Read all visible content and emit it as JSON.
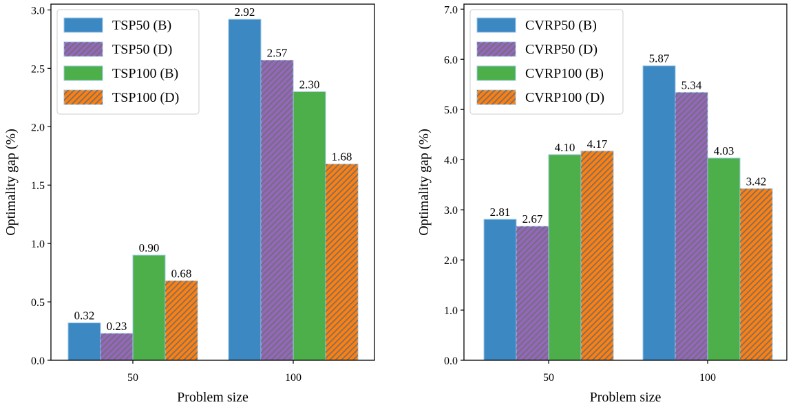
{
  "chart_data": [
    {
      "type": "bar",
      "categories": [
        "50",
        "100"
      ],
      "xlabel": "Problem size",
      "ylabel": "Optimality gap (%)",
      "ylim": [
        0,
        3.05
      ],
      "yticks": [
        "0.0",
        "0.5",
        "1.0",
        "1.5",
        "2.0",
        "2.5",
        "3.0"
      ],
      "grid": false,
      "legend_position": "upper-left",
      "series": [
        {
          "name": "TSP50 (B)",
          "values": [
            0.32,
            2.92
          ],
          "labels": [
            "0.32",
            "2.92"
          ],
          "color": "#3c88c2",
          "hatch": false
        },
        {
          "name": "TSP50 (D)",
          "values": [
            0.23,
            2.57
          ],
          "labels": [
            "0.23",
            "2.57"
          ],
          "color": "#9467bd",
          "hatch": true
        },
        {
          "name": "TSP100 (B)",
          "values": [
            0.9,
            2.3
          ],
          "labels": [
            "0.90",
            "2.30"
          ],
          "color": "#4daf4a",
          "hatch": false
        },
        {
          "name": "TSP100 (D)",
          "values": [
            0.68,
            1.68
          ],
          "labels": [
            "0.68",
            "1.68"
          ],
          "color": "#ff7f0e",
          "hatch": true
        }
      ]
    },
    {
      "type": "bar",
      "categories": [
        "50",
        "100"
      ],
      "xlabel": "Problem size",
      "ylabel": "Optimality gap (%)",
      "ylim": [
        0,
        7.1
      ],
      "yticks": [
        "0.0",
        "1.0",
        "2.0",
        "3.0",
        "4.0",
        "5.0",
        "6.0",
        "7.0"
      ],
      "grid": false,
      "legend_position": "upper-left",
      "series": [
        {
          "name": "CVRP50 (B)",
          "values": [
            2.81,
            5.87
          ],
          "labels": [
            "2.81",
            "5.87"
          ],
          "color": "#3c88c2",
          "hatch": false
        },
        {
          "name": "CVRP50 (D)",
          "values": [
            2.67,
            5.34
          ],
          "labels": [
            "2.67",
            "5.34"
          ],
          "color": "#9467bd",
          "hatch": true
        },
        {
          "name": "CVRP100 (B)",
          "values": [
            4.1,
            4.03
          ],
          "labels": [
            "4.10",
            "4.03"
          ],
          "color": "#4daf4a",
          "hatch": false
        },
        {
          "name": "CVRP100 (D)",
          "values": [
            4.17,
            3.42
          ],
          "labels": [
            "4.17",
            "3.42"
          ],
          "color": "#ff7f0e",
          "hatch": true
        }
      ]
    }
  ]
}
